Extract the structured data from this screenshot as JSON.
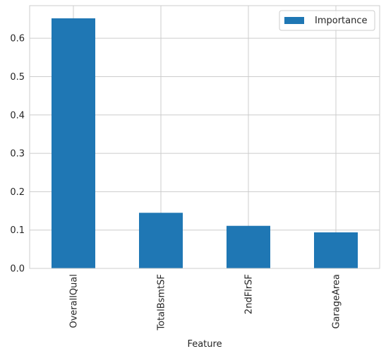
{
  "chart_data": {
    "type": "bar",
    "title": "",
    "xlabel": "Feature",
    "ylabel": "",
    "categories": [
      "OverallQual",
      "TotalBsmtSF",
      "2ndFlrSF",
      "GarageArea"
    ],
    "series": [
      {
        "name": "Importance",
        "values": [
          0.652,
          0.145,
          0.111,
          0.094
        ]
      }
    ],
    "ylim": [
      0,
      0.685
    ],
    "yticks": [
      0.0,
      0.1,
      0.2,
      0.3,
      0.4,
      0.5,
      0.6
    ],
    "ytick_labels": [
      "0.0",
      "0.1",
      "0.2",
      "0.3",
      "0.4",
      "0.5",
      "0.6"
    ],
    "grid": true,
    "legend": "top-right",
    "colors": {
      "bar": "#1f77b4",
      "grid": "#cccccc",
      "frame": "#cccccc",
      "text": "#262626"
    }
  }
}
